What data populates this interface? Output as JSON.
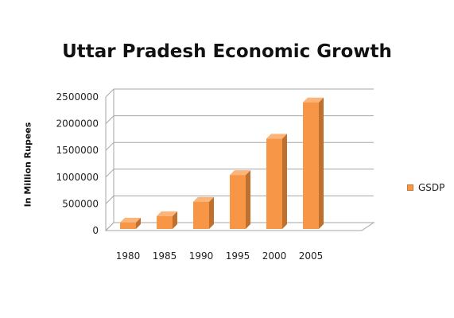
{
  "chart_data": {
    "type": "bar",
    "title": "Uttar Pradesh Economic Growth",
    "xlabel": "",
    "ylabel": "In Million Rupees",
    "categories": [
      "1980",
      "1985",
      "1990",
      "1995",
      "2000",
      "2005"
    ],
    "series": [
      {
        "name": "GSDP",
        "values": [
          150000,
          270000,
          540000,
          1040000,
          1720000,
          2400000
        ]
      }
    ],
    "ylim": [
      0,
      2500000
    ],
    "yticks": [
      0,
      500000,
      1000000,
      1500000,
      2000000,
      2500000
    ],
    "ytick_labels": [
      "0",
      "500000",
      "1000000",
      "1500000",
      "2000000",
      "2500000"
    ],
    "grid": true,
    "legend_position": "right",
    "colors": {
      "bar_front": "#f79646",
      "bar_side": "#c0702e",
      "bar_top": "#fbb47a",
      "grid": "#a6a6a6"
    }
  }
}
